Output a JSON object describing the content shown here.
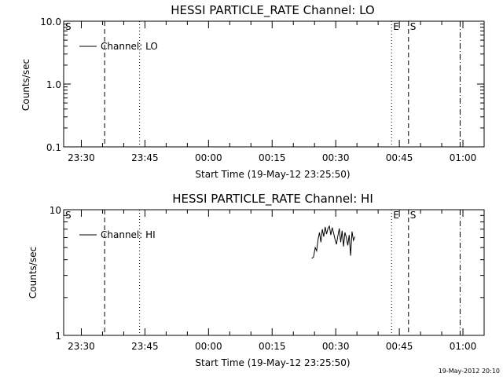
{
  "chart_data": [
    {
      "type": "line",
      "title": "HESSI PARTICLE_RATE Channel: LO",
      "xlabel": "Start Time (19-May-12 23:25:50)",
      "ylabel": "Counts/sec",
      "y_scale": "log",
      "ylim": [
        0.1,
        10.0
      ],
      "x_ticks": [
        "23:30",
        "23:45",
        "00:00",
        "00:15",
        "00:30",
        "00:45",
        "01:00"
      ],
      "y_ticks": [
        "0.1",
        "1.0",
        "10.0"
      ],
      "legend": {
        "label": "Channel: LO",
        "position": "top-left"
      },
      "markers": [
        {
          "label": "S",
          "time": "23:25:50",
          "style": "solid"
        },
        {
          "label": "",
          "time": "23:35:30",
          "style": "dashed"
        },
        {
          "label": "",
          "time": "23:43:45",
          "style": "dotted"
        },
        {
          "label": "E",
          "time": "00:43:10",
          "style": "dotted"
        },
        {
          "label": "S",
          "time": "00:47:10",
          "style": "dashed"
        },
        {
          "label": "",
          "time": "00:59:20",
          "style": "dashdot"
        }
      ],
      "series": [
        {
          "name": "Channel: LO",
          "x": [],
          "y": []
        }
      ]
    },
    {
      "type": "line",
      "title": "HESSI PARTICLE_RATE Channel: HI",
      "xlabel": "Start Time (19-May-12 23:25:50)",
      "ylabel": "Counts/sec",
      "y_scale": "log",
      "ylim": [
        1,
        10
      ],
      "x_ticks": [
        "23:30",
        "23:45",
        "00:00",
        "00:15",
        "00:30",
        "00:45",
        "01:00"
      ],
      "y_ticks": [
        "1",
        "10"
      ],
      "legend": {
        "label": "Channel: HI",
        "position": "top-left"
      },
      "markers": [
        {
          "label": "S",
          "time": "23:25:50",
          "style": "solid"
        },
        {
          "label": "",
          "time": "23:35:30",
          "style": "dashed"
        },
        {
          "label": "",
          "time": "23:43:45",
          "style": "dotted"
        },
        {
          "label": "E",
          "time": "00:43:10",
          "style": "dotted"
        },
        {
          "label": "S",
          "time": "00:47:10",
          "style": "dashed"
        },
        {
          "label": "",
          "time": "00:59:20",
          "style": "dashdot"
        }
      ],
      "series": [
        {
          "name": "Channel: HI",
          "x": [
            "00:24:20",
            "00:24:45",
            "00:25:10",
            "00:25:30",
            "00:25:50",
            "00:26:10",
            "00:26:30",
            "00:26:50",
            "00:27:10",
            "00:27:30",
            "00:27:50",
            "00:28:10",
            "00:28:30",
            "00:28:50",
            "00:29:10",
            "00:29:30",
            "00:29:50",
            "00:30:10",
            "00:30:30",
            "00:30:50",
            "00:31:10",
            "00:31:30",
            "00:31:50",
            "00:32:10",
            "00:32:30",
            "00:32:50",
            "00:33:10",
            "00:33:30",
            "00:33:50",
            "00:34:10",
            "00:34:30"
          ],
          "y": [
            4.1,
            4.2,
            5.0,
            4.7,
            5.8,
            6.6,
            5.5,
            7.0,
            6.1,
            7.3,
            6.4,
            7.1,
            7.4,
            6.3,
            7.2,
            6.5,
            5.8,
            5.3,
            6.2,
            7.1,
            5.5,
            6.8,
            5.1,
            6.6,
            6.0,
            5.2,
            6.3,
            4.3,
            6.7,
            5.7,
            6.1
          ]
        }
      ]
    }
  ],
  "footer": {
    "timestamp": "19-May-2012 20:10"
  }
}
